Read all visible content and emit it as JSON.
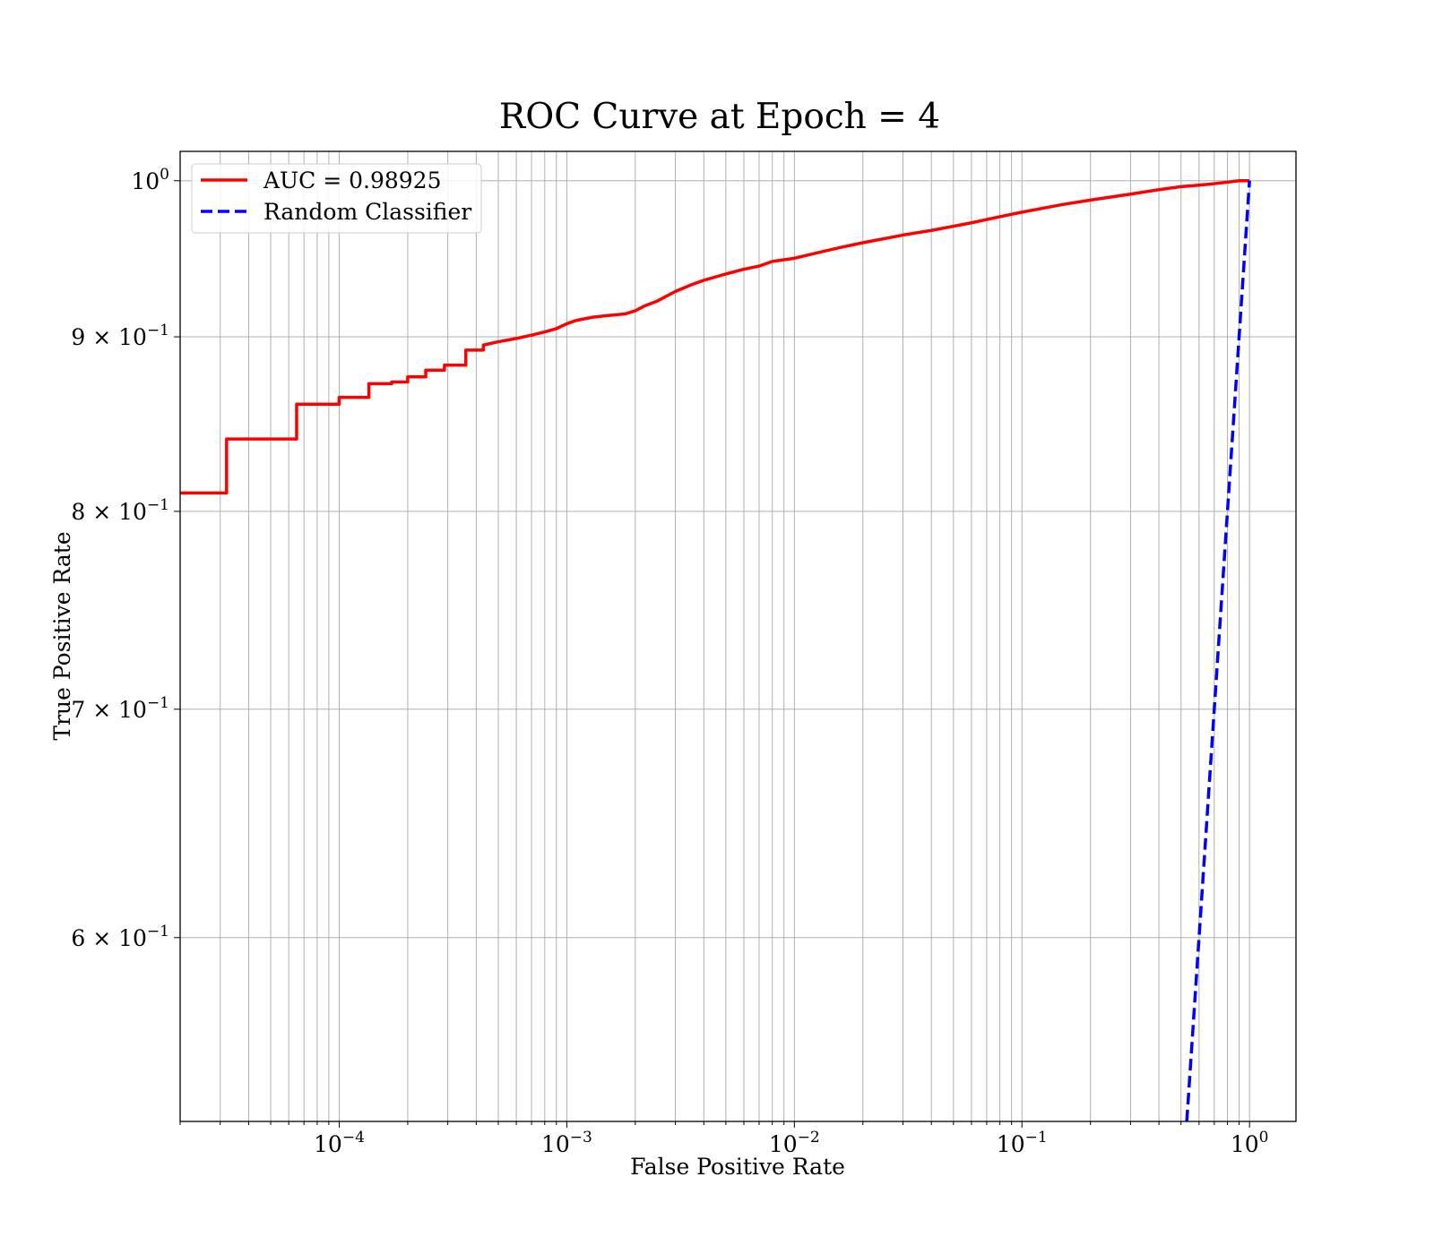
{
  "chart_data": {
    "type": "line",
    "title": "ROC Curve at Epoch = 4",
    "xlabel": "False Positive Rate",
    "ylabel": "True Positive Rate",
    "xscale": "log",
    "yscale": "log",
    "xlim": [
      2e-05,
      1.6
    ],
    "ylim": [
      0.53,
      1.02
    ],
    "grid": true,
    "legend_position": "upper-left",
    "x_tick_labels": [
      {
        "value": 0.0001,
        "base": "10",
        "exp": "−4"
      },
      {
        "value": 0.001,
        "base": "10",
        "exp": "−3"
      },
      {
        "value": 0.01,
        "base": "10",
        "exp": "−2"
      },
      {
        "value": 0.1,
        "base": "10",
        "exp": "−1"
      },
      {
        "value": 1,
        "base": "10",
        "exp": "0"
      }
    ],
    "y_tick_labels": [
      {
        "value": 1.0,
        "mant": "",
        "base": "10",
        "exp": "0"
      },
      {
        "value": 0.9,
        "mant": "9 × ",
        "base": "10",
        "exp": "−1"
      },
      {
        "value": 0.8,
        "mant": "8 × ",
        "base": "10",
        "exp": "−1"
      },
      {
        "value": 0.7,
        "mant": "7 × ",
        "base": "10",
        "exp": "−1"
      },
      {
        "value": 0.6,
        "mant": "6 × ",
        "base": "10",
        "exp": "−1"
      }
    ],
    "series": [
      {
        "name": "AUC = 0.98925",
        "color": "#ff0000",
        "style": "solid",
        "x": [
          2e-05,
          3.2e-05,
          3.2e-05,
          6.5e-05,
          6.5e-05,
          0.0001,
          0.0001,
          0.000135,
          0.000135,
          0.00017,
          0.00017,
          0.0002,
          0.0002,
          0.00024,
          0.00024,
          0.00029,
          0.00029,
          0.00036,
          0.00036,
          0.00043,
          0.00043,
          0.0005,
          0.0006,
          0.0007,
          0.0008,
          0.0009,
          0.001,
          0.0011,
          0.0013,
          0.0015,
          0.0018,
          0.002,
          0.0022,
          0.0025,
          0.003,
          0.0035,
          0.004,
          0.005,
          0.006,
          0.007,
          0.008,
          0.01,
          0.013,
          0.016,
          0.02,
          0.03,
          0.04,
          0.06,
          0.08,
          0.1,
          0.15,
          0.2,
          0.3,
          0.4,
          0.5,
          0.6,
          0.7,
          0.8,
          0.9,
          1.0
        ],
        "y": [
          0.81,
          0.81,
          0.84,
          0.84,
          0.86,
          0.86,
          0.864,
          0.864,
          0.872,
          0.872,
          0.873,
          0.873,
          0.876,
          0.876,
          0.88,
          0.88,
          0.883,
          0.883,
          0.892,
          0.892,
          0.895,
          0.897,
          0.899,
          0.901,
          0.903,
          0.905,
          0.908,
          0.91,
          0.912,
          0.913,
          0.914,
          0.916,
          0.919,
          0.922,
          0.928,
          0.932,
          0.935,
          0.939,
          0.942,
          0.944,
          0.947,
          0.949,
          0.953,
          0.956,
          0.959,
          0.964,
          0.967,
          0.972,
          0.976,
          0.979,
          0.984,
          0.987,
          0.991,
          0.994,
          0.996,
          0.997,
          0.998,
          0.999,
          1.0,
          1.0
        ]
      },
      {
        "name": "Random Classifier",
        "color": "#0000ff",
        "style": "dashed",
        "x": [
          0.53,
          1.0
        ],
        "y": [
          0.53,
          1.0
        ]
      }
    ]
  }
}
